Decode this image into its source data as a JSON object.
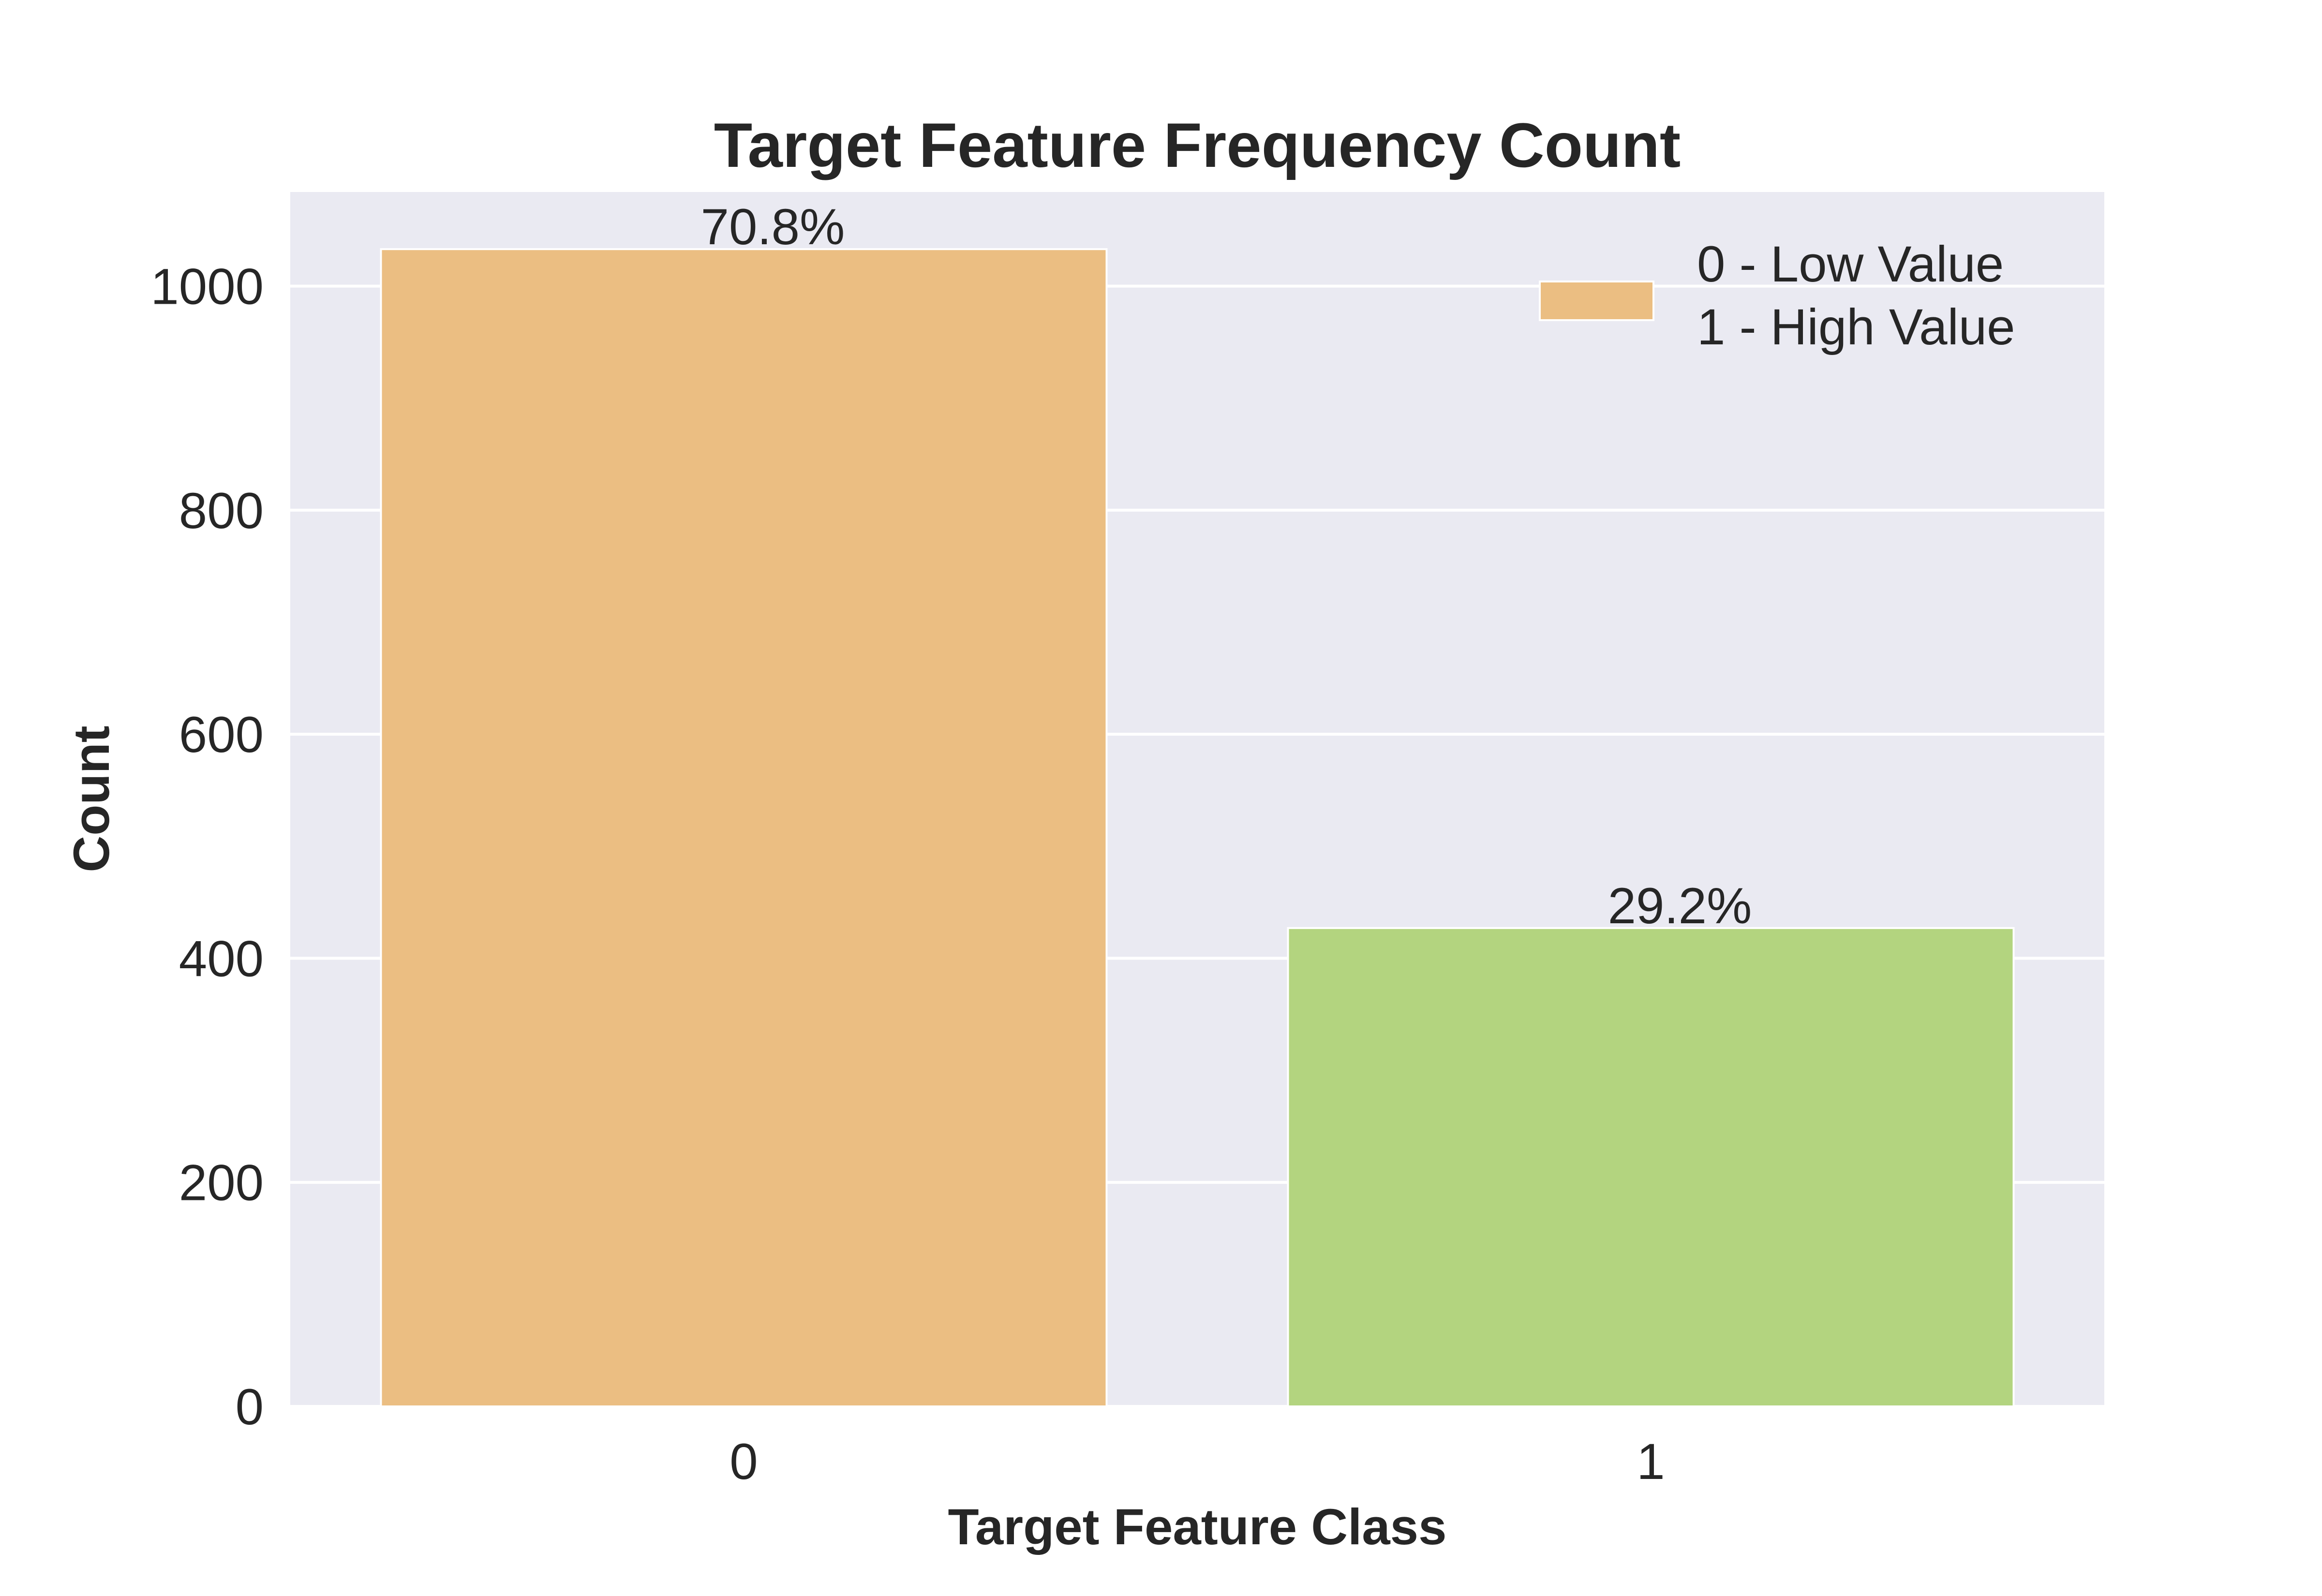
{
  "chart_data": {
    "type": "bar",
    "title": "Target Feature Frequency Count",
    "xlabel": "Target Feature Class",
    "ylabel": "Count",
    "categories": [
      "0",
      "1"
    ],
    "values": [
      1033,
      427
    ],
    "bar_colors": [
      "#ebbe82",
      "#b3d47f"
    ],
    "data_labels": [
      "70.8%",
      "29.2%"
    ],
    "ylim": [
      0,
      1084
    ],
    "yticks": [
      0,
      200,
      400,
      600,
      800,
      1000
    ],
    "grid": true,
    "legend": {
      "placement": "top-right",
      "entries": [
        "0 - Low Value",
        "1 - High Value"
      ]
    },
    "colors": {
      "plot_background": "#eaeaf2",
      "gridline": "#ffffff",
      "text": "#262626"
    }
  }
}
